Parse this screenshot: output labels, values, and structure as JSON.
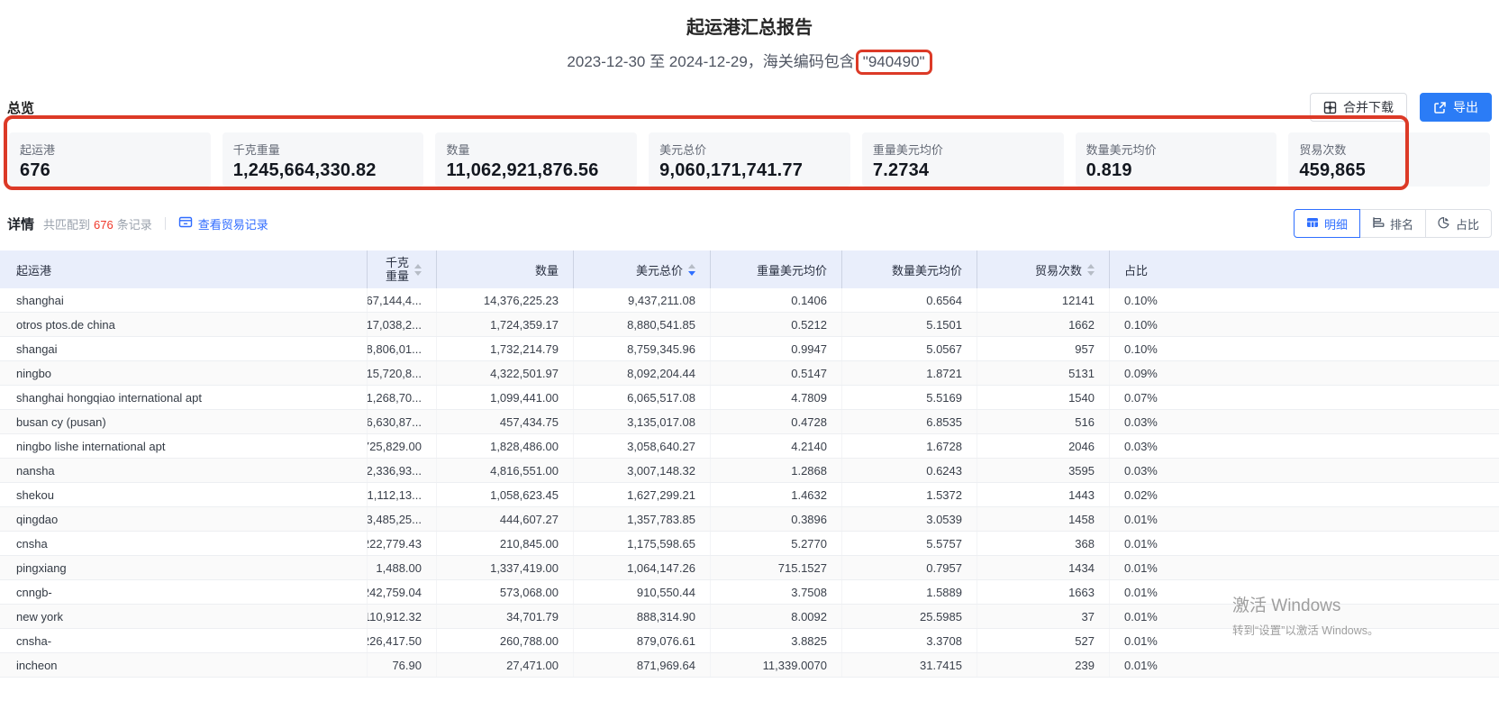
{
  "report": {
    "title": "起运港汇总报告",
    "subtitle_prefix": "2023-12-30 至 2024-12-29，海关编码包含",
    "highlighted_code": "\"940490\""
  },
  "overview": {
    "section_label": "总览",
    "merge_download_label": "合并下载",
    "export_label": "导出",
    "cards": [
      {
        "label": "起运港",
        "value": "676"
      },
      {
        "label": "千克重量",
        "value": "1,245,664,330.82"
      },
      {
        "label": "数量",
        "value": "11,062,921,876.56"
      },
      {
        "label": "美元总价",
        "value": "9,060,171,741.77"
      },
      {
        "label": "重量美元均价",
        "value": "7.2734"
      },
      {
        "label": "数量美元均价",
        "value": "0.819"
      },
      {
        "label": "贸易次数",
        "value": "459,865"
      }
    ]
  },
  "detail": {
    "section_label": "详情",
    "matched_prefix": "共匹配到",
    "matched_count": "676",
    "matched_suffix": "条记录",
    "view_records_label": "查看贸易记录",
    "view_tabs": [
      {
        "label": "明细",
        "icon": "table-icon",
        "active": true
      },
      {
        "label": "排名",
        "icon": "ranking-icon",
        "active": false
      },
      {
        "label": "占比",
        "icon": "pie-icon",
        "active": false
      }
    ]
  },
  "table": {
    "columns": [
      {
        "label": "起运港",
        "align": "left",
        "sortable": false,
        "sort": null
      },
      {
        "label": "千克重量",
        "align": "right",
        "sortable": true,
        "sort": null
      },
      {
        "label": "数量",
        "align": "right",
        "sortable": false,
        "sort": null
      },
      {
        "label": "美元总价",
        "align": "right",
        "sortable": true,
        "sort": "desc"
      },
      {
        "label": "重量美元均价",
        "align": "right",
        "sortable": false,
        "sort": null
      },
      {
        "label": "数量美元均价",
        "align": "right",
        "sortable": false,
        "sort": null
      },
      {
        "label": "贸易次数",
        "align": "right",
        "sortable": true,
        "sort": null
      },
      {
        "label": "占比",
        "align": "left",
        "sortable": false,
        "sort": null
      }
    ],
    "rows": [
      [
        "shanghai",
        "67,144,4...",
        "14,376,225.23",
        "9,437,211.08",
        "0.1406",
        "0.6564",
        "12141",
        "0.10%"
      ],
      [
        "otros ptos.de china",
        "17,038,2...",
        "1,724,359.17",
        "8,880,541.85",
        "0.5212",
        "5.1501",
        "1662",
        "0.10%"
      ],
      [
        "shangai",
        "8,806,01...",
        "1,732,214.79",
        "8,759,345.96",
        "0.9947",
        "5.0567",
        "957",
        "0.10%"
      ],
      [
        "ningbo",
        "15,720,8...",
        "4,322,501.97",
        "8,092,204.44",
        "0.5147",
        "1.8721",
        "5131",
        "0.09%"
      ],
      [
        "shanghai hongqiao international apt",
        "1,268,70...",
        "1,099,441.00",
        "6,065,517.08",
        "4.7809",
        "5.5169",
        "1540",
        "0.07%"
      ],
      [
        "busan cy (pusan)",
        "6,630,87...",
        "457,434.75",
        "3,135,017.08",
        "0.4728",
        "6.8535",
        "516",
        "0.03%"
      ],
      [
        "ningbo lishe international apt",
        "725,829.00",
        "1,828,486.00",
        "3,058,640.27",
        "4.2140",
        "1.6728",
        "2046",
        "0.03%"
      ],
      [
        "nansha",
        "2,336,93...",
        "4,816,551.00",
        "3,007,148.32",
        "1.2868",
        "0.6243",
        "3595",
        "0.03%"
      ],
      [
        "shekou",
        "1,112,13...",
        "1,058,623.45",
        "1,627,299.21",
        "1.4632",
        "1.5372",
        "1443",
        "0.02%"
      ],
      [
        "qingdao",
        "3,485,25...",
        "444,607.27",
        "1,357,783.85",
        "0.3896",
        "3.0539",
        "1458",
        "0.01%"
      ],
      [
        "cnsha",
        "222,779.43",
        "210,845.00",
        "1,175,598.65",
        "5.2770",
        "5.5757",
        "368",
        "0.01%"
      ],
      [
        "pingxiang",
        "1,488.00",
        "1,337,419.00",
        "1,064,147.26",
        "715.1527",
        "0.7957",
        "1434",
        "0.01%"
      ],
      [
        "cnngb-",
        "242,759.04",
        "573,068.00",
        "910,550.44",
        "3.7508",
        "1.5889",
        "1663",
        "0.01%"
      ],
      [
        "new york",
        "110,912.32",
        "34,701.79",
        "888,314.90",
        "8.0092",
        "25.5985",
        "37",
        "0.01%"
      ],
      [
        "cnsha-",
        "226,417.50",
        "260,788.00",
        "879,076.61",
        "3.8825",
        "3.3708",
        "527",
        "0.01%"
      ],
      [
        "incheon",
        "76.90",
        "27,471.00",
        "871,969.64",
        "11,339.0070",
        "31.7415",
        "239",
        "0.01%"
      ]
    ]
  },
  "watermark": {
    "line1": "激活 Windows",
    "line2": "转到“设置”以激活 Windows。"
  },
  "colors": {
    "accent_blue": "#2b7cf6",
    "annotation_red": "#dc3a27",
    "count_red": "#f0392b",
    "header_bg": "#e9eefb"
  }
}
